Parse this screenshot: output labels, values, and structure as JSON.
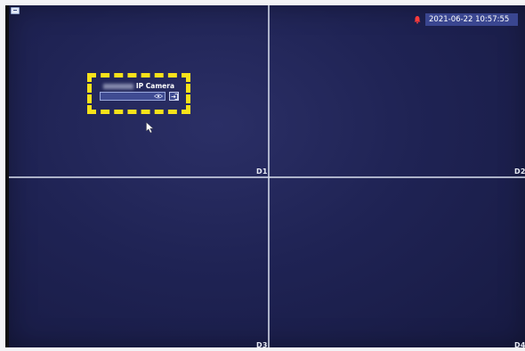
{
  "status_bar": {
    "datetime": "2021-06-22 10:57:55",
    "alarm_icon": "alarm-bell-icon",
    "alarm_color": "#ff3b3b"
  },
  "channels": {
    "d1": "D1",
    "d2": "D2",
    "d3": "D3",
    "d4": "D4"
  },
  "login_popup": {
    "title": "IP Camera",
    "password_value": "",
    "eye_icon": "eye-icon",
    "login_icon": "login-icon"
  },
  "colors": {
    "background": "#1f2354",
    "highlight": "#f7e21a",
    "datetime_bg": "#3a4690"
  }
}
